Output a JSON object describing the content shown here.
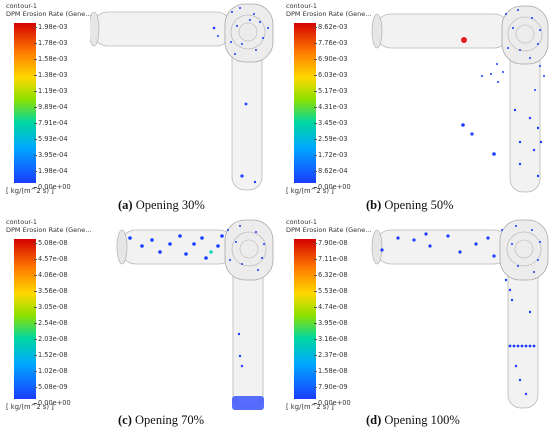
{
  "panels": [
    {
      "contour": "contour-1",
      "variable": "DPM Erosion Rate (Gene...",
      "ticks": [
        "1.98e-03",
        "1.78e-03",
        "1.58e-03",
        "1.38e-03",
        "1.19e-03",
        "9.89e-04",
        "7.91e-04",
        "5.93e-04",
        "3.95e-04",
        "1.98e-04",
        "0.00e+00"
      ],
      "unit": "[ kg/(m^2 s) ]",
      "label": "(a)",
      "caption": "Opening 30%"
    },
    {
      "contour": "contour-1",
      "variable": "DPM Erosion Rate (Gene...",
      "ticks": [
        "8.62e-03",
        "7.76e-03",
        "6.90e-03",
        "6.03e-03",
        "5.17e-03",
        "4.31e-03",
        "3.45e-03",
        "2.59e-03",
        "1.72e-03",
        "8.62e-04",
        "0.00e+00"
      ],
      "unit": "[ kg/(m^2 s) ]",
      "label": "(b)",
      "caption": "Opening 50%"
    },
    {
      "contour": "contour-1",
      "variable": "DPM Erosion Rate (Gene...",
      "ticks": [
        "5.08e-08",
        "4.57e-08",
        "4.06e-08",
        "3.56e-08",
        "3.05e-08",
        "2.54e-08",
        "2.03e-08",
        "1.52e-08",
        "1.02e-08",
        "5.08e-09",
        "0.00e+00"
      ],
      "unit": "[ kg/(m^2 s) ]",
      "label": "(c)",
      "caption": "Opening 70%"
    },
    {
      "contour": "contour-1",
      "variable": "DPM Erosion Rate (Gene...",
      "ticks": [
        "7.90e-08",
        "7.11e-08",
        "6.32e-08",
        "5.53e-08",
        "4.74e-08",
        "3.95e-08",
        "3.16e-08",
        "2.37e-08",
        "1.58e-08",
        "7.90e-09",
        "0.00e+00"
      ],
      "unit": "[ kg/(m^2 s) ]",
      "label": "(d)",
      "caption": "Opening 100%"
    }
  ],
  "colors": {
    "scale_top": "#d40000",
    "scale_mid": "#8be000",
    "scale_bottom": "#1a3cff",
    "erosion_dots": "#1a3cff",
    "hotspot": "#e02020",
    "pipe": "#f2f2f2"
  }
}
